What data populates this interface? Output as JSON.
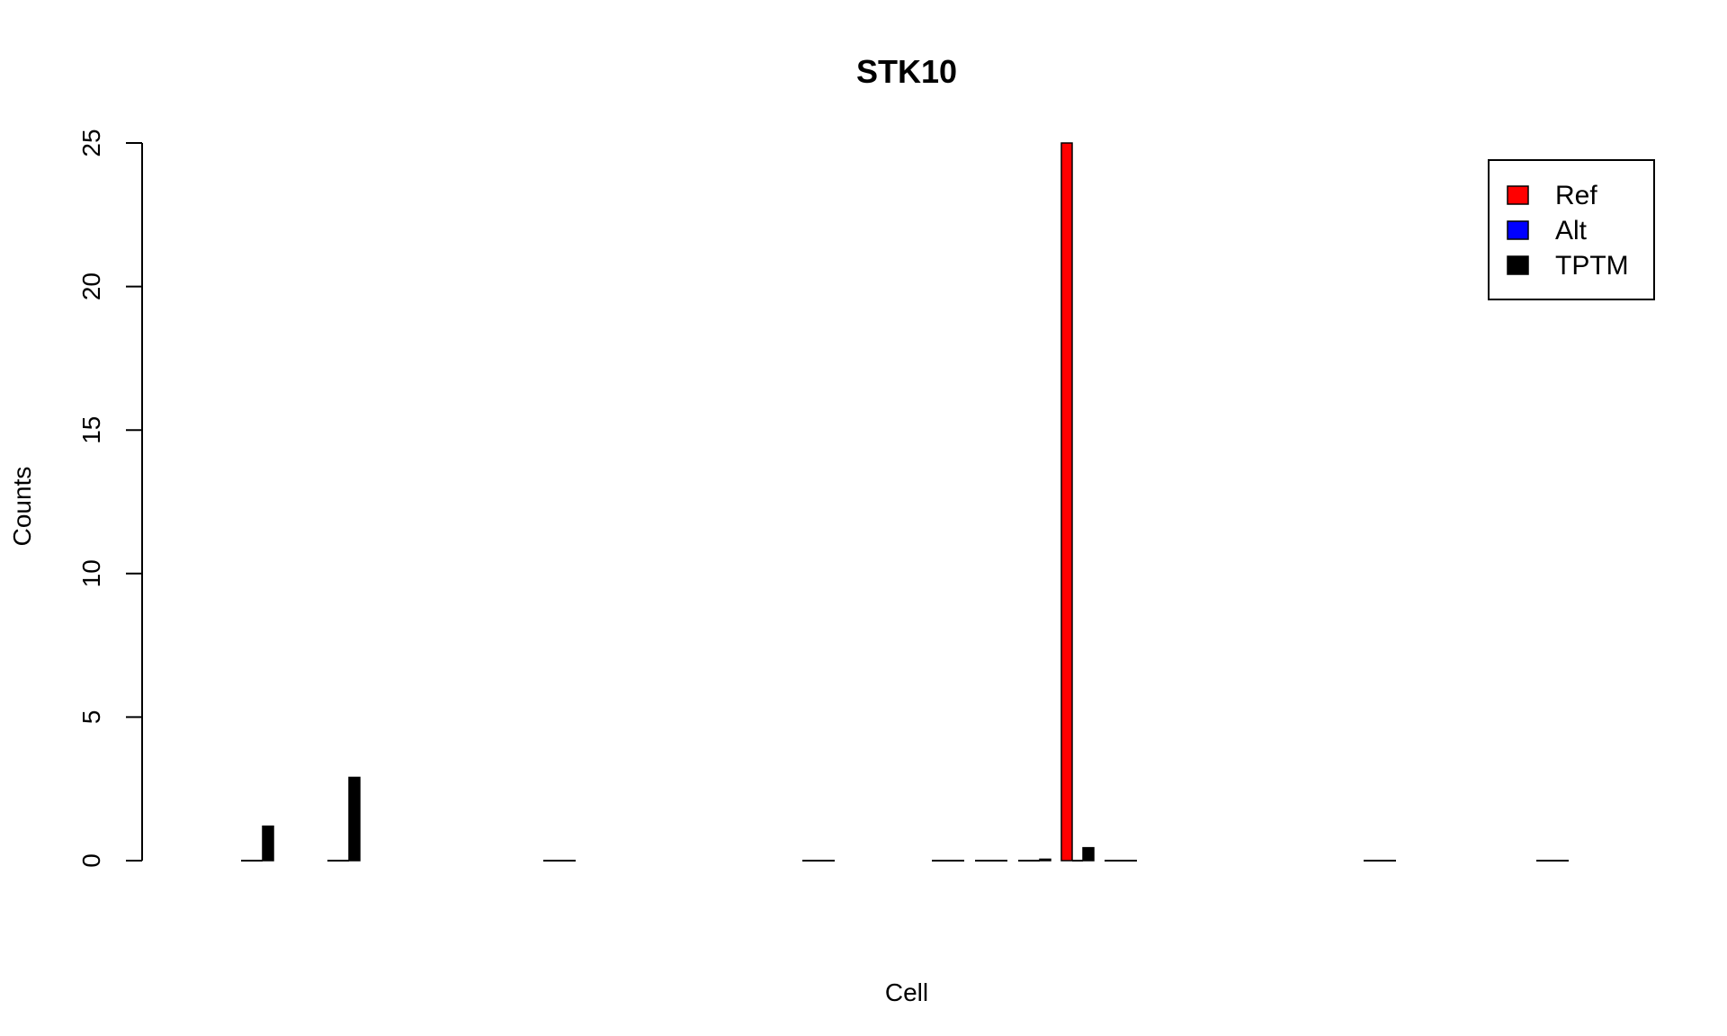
{
  "chart_data": {
    "type": "bar",
    "title": "STK10",
    "xlabel": "Cell",
    "ylabel": "Counts",
    "ylim": [
      0,
      25
    ],
    "yticks": [
      "0",
      "5",
      "10",
      "15",
      "20",
      "25"
    ],
    "grid": false,
    "legend_position": "top-right",
    "series": [
      {
        "name": "Ref",
        "color": "#ff0000",
        "values": [
          0,
          0,
          0,
          0,
          0,
          0,
          0,
          25,
          0,
          0,
          0,
          0,
          0
        ]
      },
      {
        "name": "Alt",
        "color": "#0000ff",
        "values": [
          0,
          0,
          0,
          0,
          0,
          0,
          0,
          0,
          0,
          0,
          0,
          0,
          0
        ]
      },
      {
        "name": "TPTM",
        "color": "#000000",
        "values": [
          1.2,
          2.9,
          0,
          0,
          0,
          0,
          0.05,
          0.45,
          0,
          0,
          0,
          0,
          0
        ]
      }
    ]
  }
}
